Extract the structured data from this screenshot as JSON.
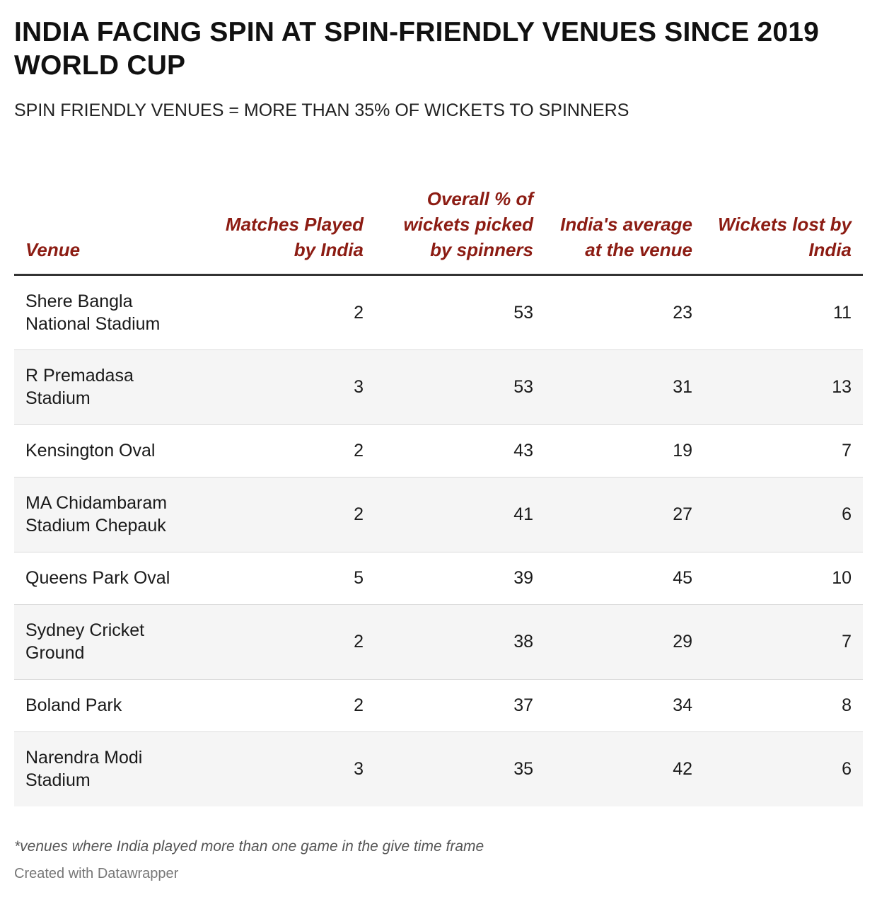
{
  "title": "INDIA FACING SPIN AT SPIN-FRIENDLY VENUES SINCE 2019 WORLD CUP",
  "subtitle": "SPIN FRIENDLY VENUES = MORE THAN 35% OF WICKETS TO SPINNERS",
  "colors": {
    "header_text": "#8c1c13",
    "stripe": "#f5f5f5",
    "header_rule": "#333333"
  },
  "chart_data": {
    "type": "table",
    "columns": [
      "Venue",
      "Matches Played by India",
      "Overall % of wickets picked by spinners",
      "India's average at the venue",
      "Wickets lost by India"
    ],
    "rows": [
      {
        "venue": "Shere Bangla National Stadium",
        "matches": "2",
        "spin_pct": "53",
        "avg": "23",
        "wickets": "11"
      },
      {
        "venue": "R Premadasa Stadium",
        "matches": "3",
        "spin_pct": "53",
        "avg": "31",
        "wickets": "13"
      },
      {
        "venue": "Kensington Oval",
        "matches": "2",
        "spin_pct": "43",
        "avg": "19",
        "wickets": "7"
      },
      {
        "venue": "MA Chidambaram Stadium Chepauk",
        "matches": "2",
        "spin_pct": "41",
        "avg": "27",
        "wickets": "6"
      },
      {
        "venue": "Queens Park Oval",
        "matches": "5",
        "spin_pct": "39",
        "avg": "45",
        "wickets": "10"
      },
      {
        "venue": "Sydney Cricket Ground",
        "matches": "2",
        "spin_pct": "38",
        "avg": "29",
        "wickets": "7"
      },
      {
        "venue": "Boland Park",
        "matches": "2",
        "spin_pct": "37",
        "avg": "34",
        "wickets": "8"
      },
      {
        "venue": "Narendra Modi Stadium",
        "matches": "3",
        "spin_pct": "35",
        "avg": "42",
        "wickets": "6"
      }
    ]
  },
  "footnote": "*venues where India played more than one game in the give time frame",
  "credit": "Created with Datawrapper"
}
